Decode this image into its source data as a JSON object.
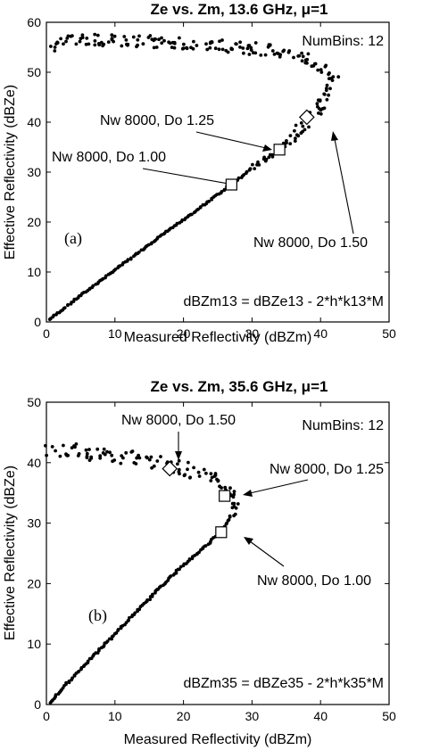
{
  "chart_data": [
    {
      "type": "scatter",
      "title": "Ze vs. Zm, 13.6 GHz, μ=1",
      "xlabel": "Measured Reflectivity (dBZm)",
      "ylabel": "Effective Reflectivity (dBZe)",
      "xlim": [
        0,
        50
      ],
      "ylim": [
        0,
        60
      ],
      "xticks": [
        "0",
        "10",
        "20",
        "30",
        "40",
        "50"
      ],
      "yticks": [
        "0",
        "10",
        "20",
        "30",
        "40",
        "50",
        "60"
      ],
      "numbins_label": "NumBins: 12",
      "panel_label": "(a)",
      "equation": "dBZm13 = dBZe13 - 2*h*k13*M",
      "markers": [
        {
          "shape": "square",
          "label": "Nw 8000, Do 1.00",
          "x": 27,
          "y": 27.5
        },
        {
          "shape": "square",
          "label": "Nw 8000, Do 1.25",
          "x": 34,
          "y": 34.5
        },
        {
          "shape": "diamond",
          "label": "Nw 8000, Do 1.50",
          "x": 38,
          "y": 41
        }
      ],
      "series": [
        {
          "values": [
            [
              0.5,
              0.5
            ],
            [
              3,
              3.2
            ],
            [
              6,
              6.3
            ],
            [
              9,
              9.4
            ],
            [
              12,
              12.4
            ],
            [
              15,
              15.5
            ],
            [
              18,
              18.5
            ],
            [
              21,
              21.4
            ],
            [
              24,
              24.5
            ],
            [
              27,
              27.5
            ],
            [
              30,
              30.8
            ],
            [
              32,
              32.5
            ],
            [
              34,
              34.5
            ],
            [
              36,
              37
            ],
            [
              38,
              40
            ],
            [
              40,
              43
            ],
            [
              41.5,
              46
            ],
            [
              42,
              48
            ],
            [
              41,
              50
            ],
            [
              39,
              52
            ],
            [
              36,
              53.5
            ],
            [
              33,
              54.5
            ],
            [
              28,
              55
            ],
            [
              22,
              55.5
            ],
            [
              16,
              56
            ],
            [
              10,
              56.5
            ],
            [
              6,
              56.5
            ],
            [
              2,
              56
            ],
            [
              0.5,
              55
            ]
          ]
        }
      ]
    },
    {
      "type": "scatter",
      "title": "Ze vs. Zm, 35.6 GHz, μ=1",
      "xlabel": "Measured Reflectivity (dBZm)",
      "ylabel": "Effective Reflectivity (dBZe)",
      "xlim": [
        0,
        50
      ],
      "ylim": [
        0,
        50
      ],
      "xticks": [
        "0",
        "10",
        "20",
        "30",
        "40",
        "50"
      ],
      "yticks": [
        "0",
        "10",
        "20",
        "30",
        "40",
        "50"
      ],
      "numbins_label": "NumBins: 12",
      "panel_label": "(b)",
      "equation": "dBZm35 = dBZe35 - 2*h*k35*M",
      "markers": [
        {
          "shape": "diamond",
          "label": "Nw 8000, Do 1.50",
          "x": 18,
          "y": 39
        },
        {
          "shape": "square",
          "label": "Nw 8000, Do 1.25",
          "x": 26,
          "y": 34.5
        },
        {
          "shape": "square",
          "label": "Nw 8000, Do 1.00",
          "x": 25.5,
          "y": 28.5
        }
      ],
      "series": [
        {
          "values": [
            [
              0.5,
              0.3
            ],
            [
              3,
              3.5
            ],
            [
              6,
              7
            ],
            [
              9,
              10.5
            ],
            [
              12,
              14
            ],
            [
              15,
              17.5
            ],
            [
              18,
              21
            ],
            [
              21,
              24
            ],
            [
              24,
              27
            ],
            [
              26,
              29.5
            ],
            [
              27,
              31.5
            ],
            [
              27.5,
              33.5
            ],
            [
              27,
              35.5
            ],
            [
              25,
              37
            ],
            [
              22,
              38.5
            ],
            [
              18,
              39.5
            ],
            [
              14,
              40.5
            ],
            [
              10,
              41
            ],
            [
              6,
              41.8
            ],
            [
              3,
              42
            ],
            [
              0.5,
              42
            ]
          ]
        }
      ]
    }
  ]
}
